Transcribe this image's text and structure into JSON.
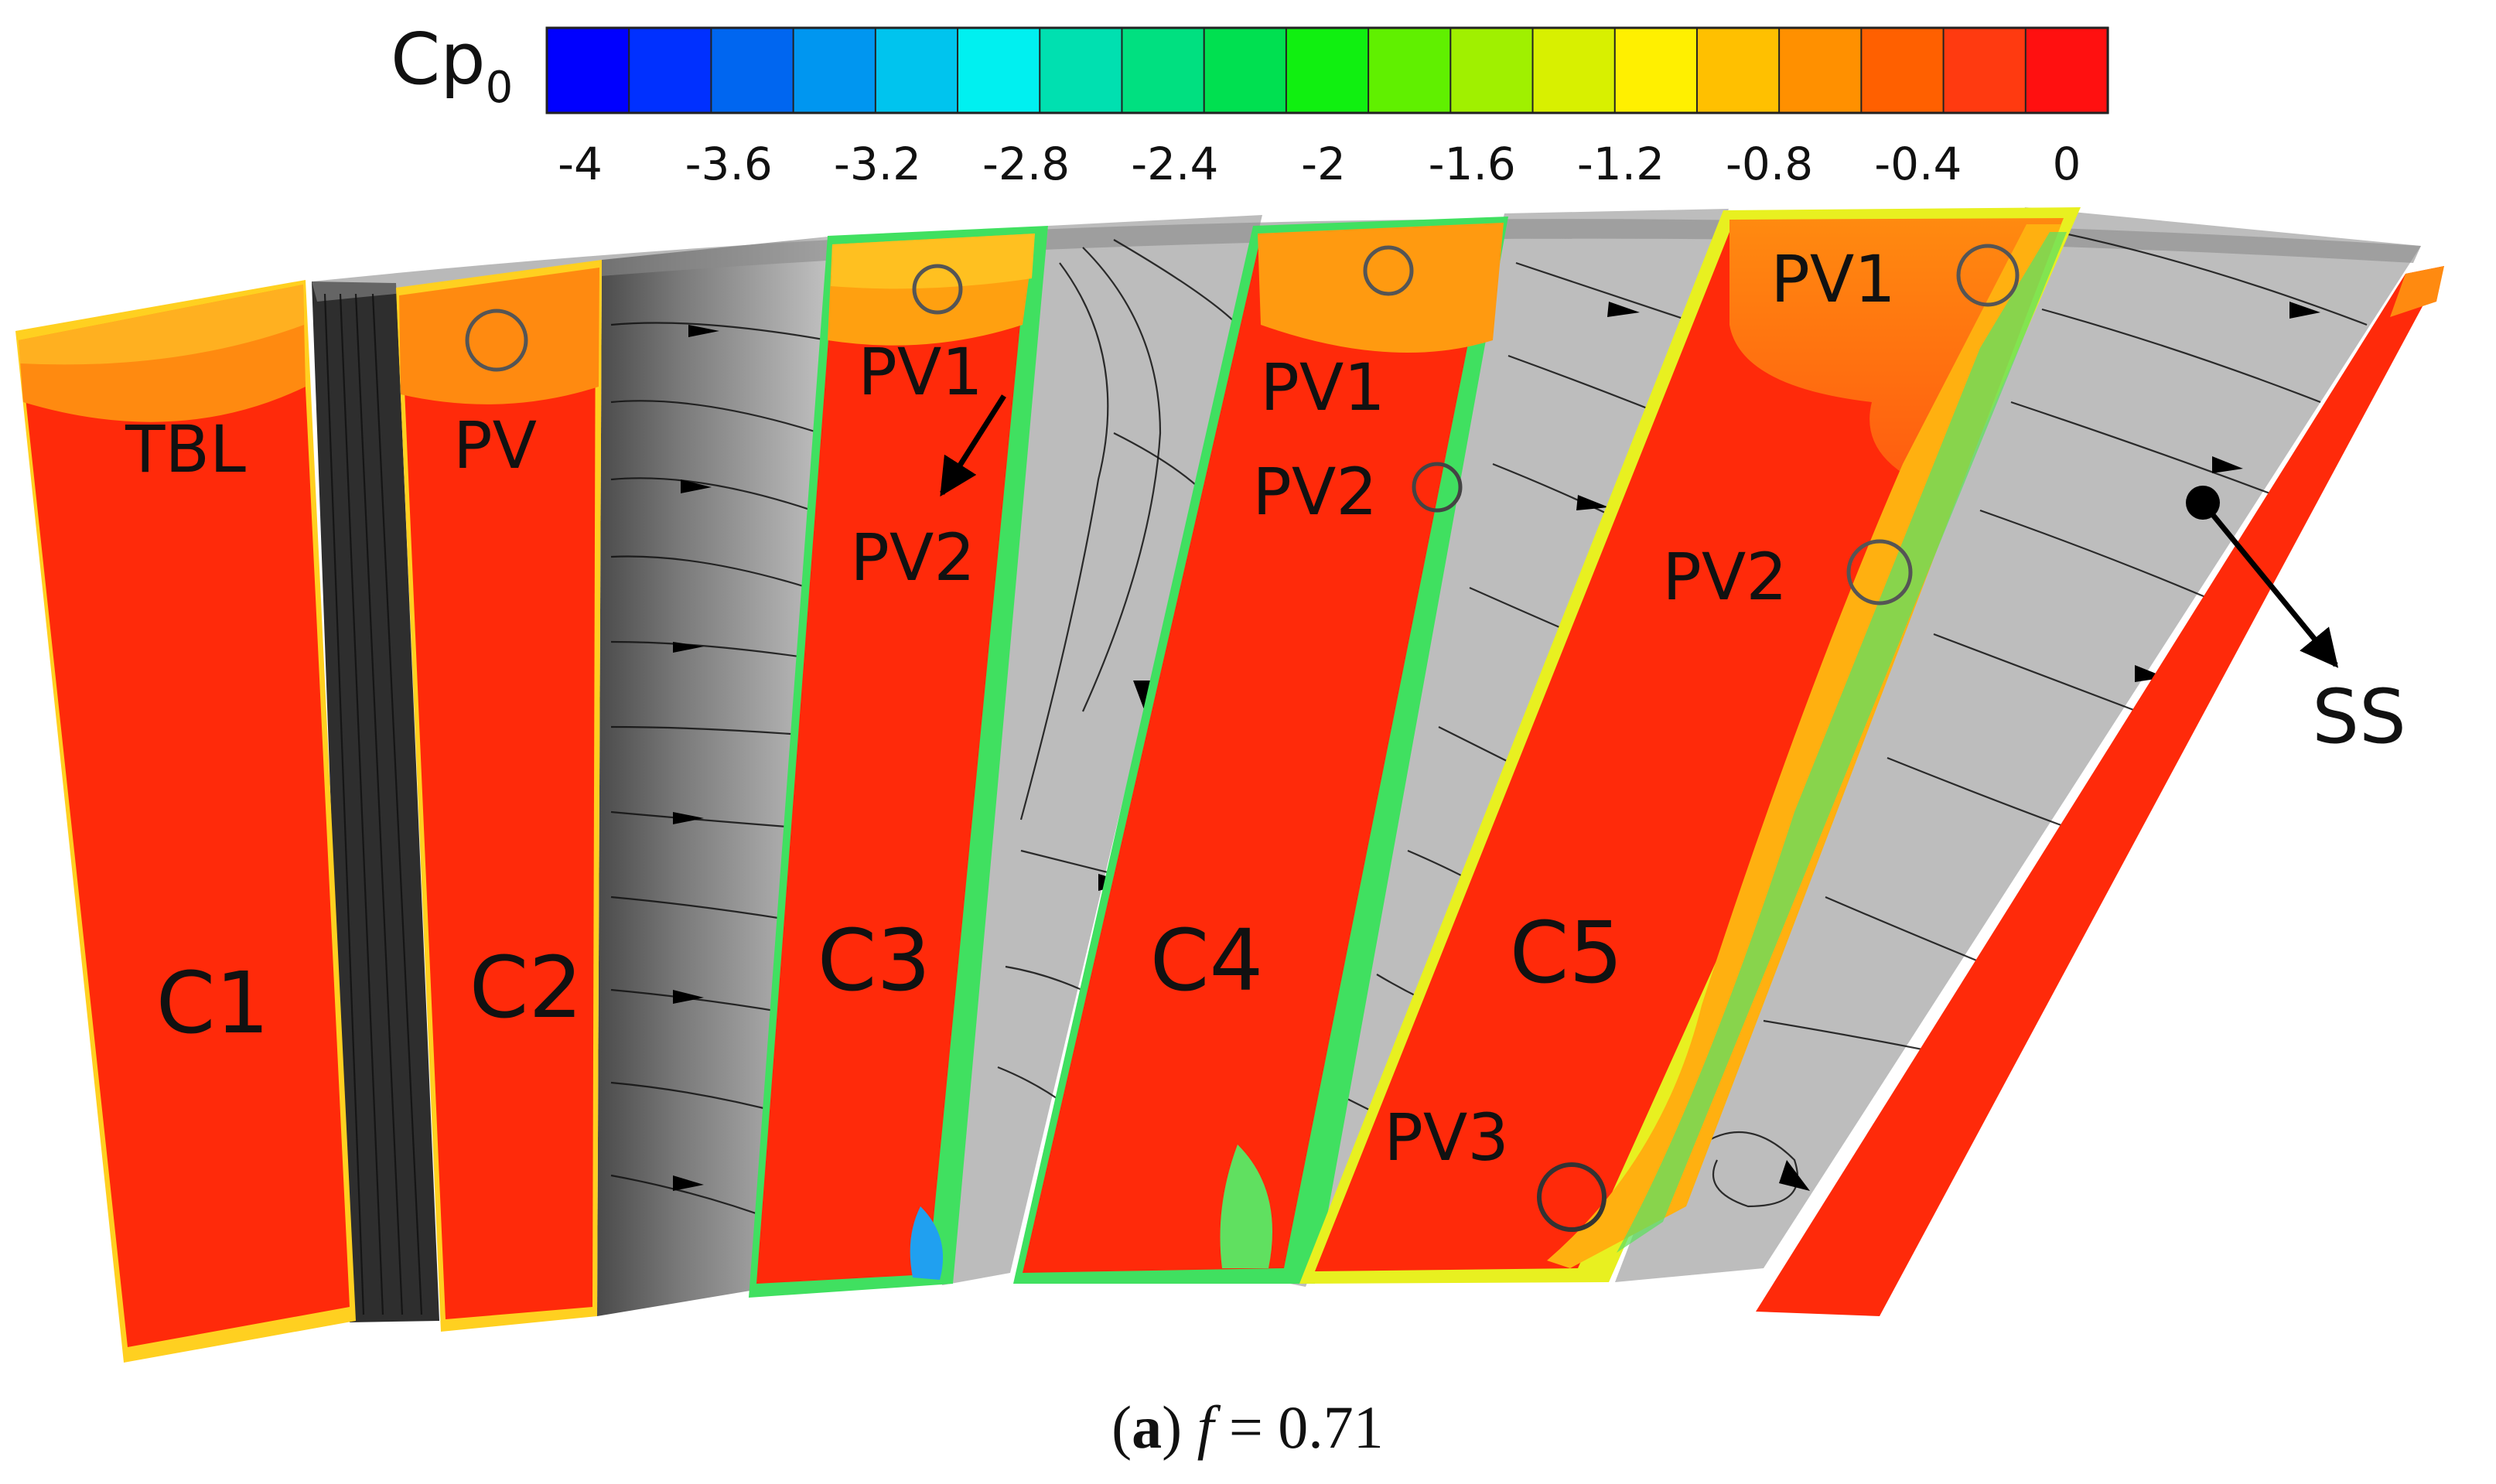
{
  "colorbar": {
    "title_main": "Cp",
    "title_sub": "0",
    "ticks": [
      "-4",
      "-3.6",
      "-3.2",
      "-2.8",
      "-2.4",
      "-2",
      "-1.6",
      "-1.2",
      "-0.8",
      "-0.4",
      "0"
    ],
    "levels": [
      "#0000ff",
      "#0030ff",
      "#0066f0",
      "#0096f0",
      "#00c4ee",
      "#00f0f0",
      "#00e0b0",
      "#00e080",
      "#00e050",
      "#10f010",
      "#60f000",
      "#a0f000",
      "#d8f000",
      "#fff000",
      "#ffc000",
      "#ff9000",
      "#ff6000",
      "#ff3a10",
      "#ff1010"
    ]
  },
  "panels": {
    "c1": {
      "label": "C1",
      "region": "TBL"
    },
    "c2": {
      "label": "C2",
      "region": "PV"
    },
    "c3": {
      "label": "C3",
      "pv1": "PV1",
      "pv2": "PV2"
    },
    "c4": {
      "label": "C4",
      "pv1": "PV1",
      "pv2": "PV2"
    },
    "c5": {
      "label": "C5",
      "pv1": "PV1",
      "pv2": "PV2",
      "pv3": "PV3"
    },
    "ss": "SS"
  },
  "caption": {
    "part": "a",
    "close_paren": ")",
    "var": "f",
    "equals": " = 0.71"
  },
  "colors": {
    "red": "#ff2a0a",
    "orange": "#ff7a10",
    "gold": "#ffb010",
    "yellow": "#e8f020",
    "green": "#40e060",
    "dark_gray": "#3a3a3a",
    "light_gray": "#b8b8b8"
  }
}
